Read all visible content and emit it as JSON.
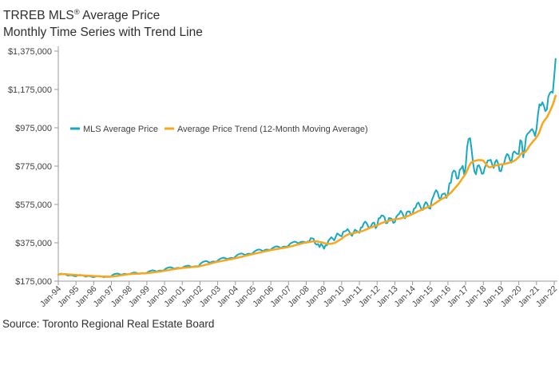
{
  "header": {
    "title_prefix": "TRREB MLS",
    "title_registered": "®",
    "title_suffix": " Average Price",
    "subtitle": "Monthly Time Series with Trend Line"
  },
  "footer": {
    "source": "Source: Toronto Regional Real Estate Board"
  },
  "legend": {
    "series1_label": "MLS Average Price",
    "series2_label": "Average Price Trend (12-Month Moving Average)"
  },
  "colors": {
    "price_line": "#17a9c4",
    "trend_line": "#f9a61a",
    "axis": "#9b9b9b",
    "text": "#3f3f3f"
  },
  "chart_data": {
    "type": "line",
    "title": "TRREB MLS Average Price — Monthly Time Series with Trend Line",
    "xlabel": "",
    "ylabel": "",
    "grid": false,
    "legend_position": "inside-top-left",
    "ylim": [
      175000,
      1375000
    ],
    "y_tick_labels": [
      "$175,000",
      "$375,000",
      "$575,000",
      "$775,000",
      "$975,000",
      "$1,175,000",
      "$1,375,000"
    ],
    "x_tick_labels": [
      "Jan-94",
      "Jan-95",
      "Jan-96",
      "Jan-97",
      "Jan-98",
      "Jan-99",
      "Jan-00",
      "Jan-01",
      "Jan-02",
      "Jan-03",
      "Jan-04",
      "Jan-05",
      "Jan-06",
      "Jan-07",
      "Jan-08",
      "Jan-09",
      "Jan-10",
      "Jan-11",
      "Jan-12",
      "Jan-13",
      "Jan-14",
      "Jan-15",
      "Jan-16",
      "Jan-17",
      "Jan-18",
      "Jan-19",
      "Jan-20",
      "Jan-21",
      "Jan-22"
    ],
    "x_months_per_tick": 12,
    "x_start": "Jan-1994",
    "x_end": "Feb-2022",
    "series": [
      {
        "name": "MLS Average Price",
        "values": [
          208900,
          212000,
          214000,
          212500,
          211000,
          209000,
          205000,
          204000,
          206500,
          205000,
          204000,
          201000,
          200500,
          204000,
          206500,
          207000,
          206000,
          204500,
          200000,
          198500,
          202000,
          201000,
          199500,
          197000,
          196000,
          198500,
          200000,
          200500,
          201500,
          199000,
          197000,
          195500,
          198000,
          197500,
          198000,
          196500,
          202000,
          208000,
          212000,
          213500,
          214500,
          212500,
          210000,
          208500,
          212000,
          213000,
          212000,
          210000,
          211000,
          214500,
          217500,
          219500,
          220000,
          218000,
          214500,
          213000,
          216500,
          217000,
          216500,
          215000,
          219000,
          224000,
          227500,
          230000,
          231500,
          230000,
          227000,
          225500,
          229000,
          230500,
          230000,
          229000,
          235000,
          241000,
          244500,
          246500,
          247500,
          245500,
          241500,
          240000,
          243500,
          244500,
          243500,
          242000,
          245000,
          249500,
          252500,
          254500,
          256000,
          254000,
          250000,
          248500,
          251500,
          252500,
          253000,
          252000,
          263000,
          270500,
          275000,
          278000,
          279500,
          277500,
          273000,
          271500,
          276000,
          277500,
          277000,
          276000,
          282000,
          288500,
          292500,
          295500,
          297500,
          295500,
          291500,
          290000,
          294500,
          296500,
          296000,
          295000,
          303000,
          310000,
          314500,
          317500,
          319500,
          317500,
          313500,
          312000,
          316500,
          318500,
          318000,
          317000,
          323000,
          330500,
          335000,
          338500,
          340500,
          338500,
          334000,
          332500,
          337500,
          339500,
          339000,
          338000,
          339000,
          346500,
          351000,
          354500,
          356500,
          354500,
          350000,
          348000,
          353500,
          355500,
          355000,
          354000,
          361000,
          369500,
          374500,
          378500,
          381000,
          379500,
          374500,
          372500,
          378500,
          381000,
          380500,
          379500,
          374449,
          382048,
          380338,
          398687,
          398148,
          395866,
          371427,
          364886,
          368549,
          352974,
          368582,
          361415,
          343632,
          361305,
          362052,
          385641,
          395609,
          403972,
          395414,
          387921,
          406877,
          423559,
          418460,
          411931,
          409058,
          431509,
          434696,
          437600,
          446593,
          435034,
          420482,
          411012,
          427329,
          443729,
          438030,
          433230,
          427037,
          454423,
          456147,
          477407,
          485520,
          476371,
          459122,
          451663,
          464412,
          478137,
          480421,
          451436,
          463534,
          502508,
          504117,
          517556,
          516787,
          508622,
          476947,
          479095,
          503662,
          503479,
          500161,
          478739,
          482648,
          510580,
          519879,
          526335,
          542174,
          531374,
          513246,
          503094,
          533797,
          539058,
          538881,
          520398,
          526528,
          553193,
          557684,
          577898,
          585204,
          568953,
          550700,
          546303,
          573676,
          587505,
          577936,
          556602,
          552575,
          596193,
          613933,
          635932,
          649648,
          639184,
          609236,
          602607,
          627395,
          630876,
          632685,
          609110,
          631092,
          685278,
          688011,
          739082,
          751908,
          746546,
          709825,
          710978,
          755755,
          762975,
          776684,
          729922,
          770745,
          875983,
          916567,
          920791,
          863910,
          793915,
          746218,
          732292,
          775546,
          780104,
          761757,
          735021,
          736783,
          767818,
          784558,
          804584,
          805320,
          807871,
          782129,
          765270,
          796786,
          807340,
          788345,
          750180,
          748328,
          780397,
          788335,
          820148,
          838540,
          832703,
          806755,
          792611,
          843115,
          852142,
          843637,
          837788,
          839363,
          910290,
          902680,
          821392,
          863599,
          930869,
          943710,
          951404,
          960772,
          968318,
          955615,
          932222,
          967885,
          1045488,
          1097565,
          1090992,
          1108453,
          1089536,
          1062256,
          1070911,
          1136280,
          1155345,
          1163323,
          1157849,
          1242793,
          1334544
        ]
      },
      {
        "name": "Average Price Trend (12-Month Moving Average)",
        "derived": "12-month trailing moving average of MLS Average Price"
      }
    ]
  }
}
